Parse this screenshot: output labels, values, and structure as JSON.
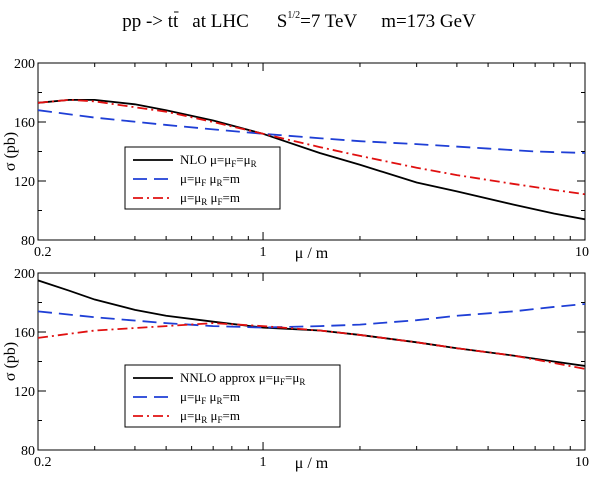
{
  "figure_title": {
    "process_prefix": "pp -> t",
    "process_bar": "t",
    "collider": "at  LHC",
    "energy_prefix": "S",
    "energy_exponent": "1/2",
    "energy_value": "=7 TeV",
    "mass": "m=173 GeV"
  },
  "chart_data": [
    {
      "type": "line",
      "panel": "top",
      "xlabel": "μ / m",
      "ylabel": "σ (pb)",
      "xscale": "log",
      "xlim": [
        0.2,
        10
      ],
      "ylim": [
        80,
        200
      ],
      "xticks": [
        0.2,
        1,
        10
      ],
      "xtick_labels": [
        "0.2",
        "1",
        "10"
      ],
      "yticks": [
        80,
        120,
        160,
        200
      ],
      "ytick_labels": [
        "80",
        "120",
        "160",
        "200"
      ],
      "legend_position": "lower-left",
      "series": [
        {
          "name": "NLO μ=μ_F=μ_R",
          "legend": {
            "t1": "NLO μ=μ",
            "s1": "F",
            "t2": "=μ",
            "s2": "R",
            "t3": ""
          },
          "color": "#000000",
          "dash": "solid",
          "x": [
            0.2,
            0.25,
            0.3,
            0.4,
            0.5,
            0.7,
            1,
            1.5,
            2,
            3,
            4,
            6,
            8,
            10
          ],
          "y": [
            173,
            175,
            175,
            172,
            168,
            161,
            152,
            139,
            131,
            119,
            113,
            104,
            98,
            94
          ]
        },
        {
          "name": "μ=μ_F μ_R=m",
          "legend": {
            "t1": "μ=μ",
            "s1": "F",
            "t2": "  μ",
            "s2": "R",
            "t3": "=m"
          },
          "color": "#1f3fd6",
          "dash": "14 7",
          "x": [
            0.2,
            0.3,
            0.5,
            0.7,
            1,
            1.5,
            2,
            3,
            5,
            7,
            10
          ],
          "y": [
            168,
            163,
            158,
            155,
            152,
            149,
            147,
            145,
            142,
            140,
            139
          ]
        },
        {
          "name": "μ=μ_R μ_F=m",
          "legend": {
            "t1": "μ=μ",
            "s1": "R",
            "t2": "  μ",
            "s2": "F",
            "t3": "=m"
          },
          "color": "#e01010",
          "dash": "10 4 2 4",
          "x": [
            0.2,
            0.25,
            0.3,
            0.4,
            0.5,
            0.7,
            1,
            1.5,
            2,
            3,
            4,
            6,
            8,
            10
          ],
          "y": [
            173,
            175,
            174,
            170,
            167,
            160,
            152,
            143,
            137,
            129,
            124,
            118,
            114,
            111
          ]
        }
      ]
    },
    {
      "type": "line",
      "panel": "bottom",
      "xlabel": "μ / m",
      "ylabel": "σ (pb)",
      "xscale": "log",
      "xlim": [
        0.2,
        10
      ],
      "ylim": [
        80,
        200
      ],
      "xticks": [
        0.2,
        1,
        10
      ],
      "xtick_labels": [
        "0.2",
        "1",
        "10"
      ],
      "yticks": [
        80,
        120,
        160,
        200
      ],
      "ytick_labels": [
        "80",
        "120",
        "160",
        "200"
      ],
      "legend_position": "lower-left",
      "series": [
        {
          "name": "NNLO approx μ=μ_F=μ_R",
          "legend": {
            "t1": "NNLO approx μ=μ",
            "s1": "F",
            "t2": "=μ",
            "s2": "R",
            "t3": ""
          },
          "color": "#000000",
          "dash": "solid",
          "x": [
            0.2,
            0.25,
            0.3,
            0.4,
            0.5,
            0.7,
            1,
            1.5,
            2,
            3,
            4,
            6,
            8,
            10
          ],
          "y": [
            195,
            188,
            182,
            175,
            171,
            167,
            163,
            161,
            158,
            153,
            149,
            144,
            140,
            137
          ]
        },
        {
          "name": "μ=μ_F μ_R=m",
          "legend": {
            "t1": "μ=μ",
            "s1": "F",
            "t2": "  μ",
            "s2": "R",
            "t3": "=m"
          },
          "color": "#1f3fd6",
          "dash": "14 7",
          "x": [
            0.2,
            0.3,
            0.5,
            0.7,
            1,
            1.5,
            2,
            3,
            4,
            6,
            8,
            10
          ],
          "y": [
            174,
            170,
            166,
            164,
            163,
            164,
            165,
            168,
            171,
            174,
            177,
            179
          ]
        },
        {
          "name": "μ=μ_R μ_F=m",
          "legend": {
            "t1": "μ=μ",
            "s1": "R",
            "t2": "  μ",
            "s2": "F",
            "t3": "=m"
          },
          "color": "#e01010",
          "dash": "10 4 2 4",
          "x": [
            0.2,
            0.3,
            0.5,
            0.7,
            1,
            1.5,
            2,
            3,
            4,
            6,
            8,
            10
          ],
          "y": [
            156,
            161,
            164,
            166,
            164,
            161,
            158,
            153,
            149,
            144,
            139,
            135
          ]
        }
      ]
    }
  ]
}
